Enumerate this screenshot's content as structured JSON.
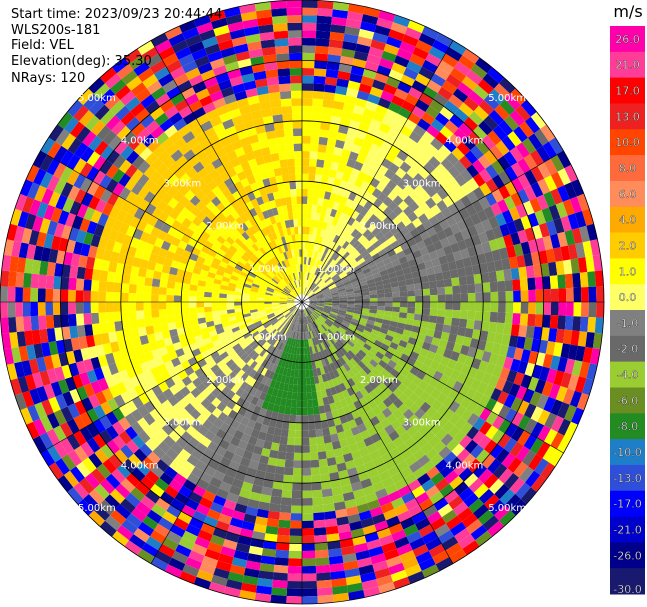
{
  "info": {
    "start_time": "Start time: 2023/09/23 20:44:44",
    "instrument": "WLS200s-181",
    "field": "Field: VEL",
    "elevation": "Elevation(deg): 35.30",
    "nrays": "NRays: 120"
  },
  "chart_data": {
    "type": "heatmap",
    "projection": "polar-ppi",
    "title": "",
    "field": "VEL",
    "units": "m/s",
    "n_rays": 120,
    "range_rings_km": [
      1.0,
      2.0,
      3.0,
      4.0,
      5.0
    ],
    "ring_labels": [
      "1.00km",
      "2.00km",
      "3.00km",
      "4.00km",
      "5.00km"
    ],
    "max_range_km": 5.0,
    "spokes_deg": [
      0,
      30,
      60,
      90,
      120,
      150,
      180,
      210,
      240,
      270,
      300,
      330
    ],
    "colorbar": {
      "label": "m/s",
      "ticks": [
        "26.0",
        "21.0",
        "17.0",
        "13.0",
        "10.0",
        "8.0",
        "6.0",
        "4.0",
        "2.0",
        "1.0",
        "0.0",
        "-1.0",
        "-2.0",
        "-4.0",
        "-6.0",
        "-8.0",
        "-10.0",
        "-13.0",
        "-17.0",
        "-21.0",
        "-26.0",
        "-30.0"
      ],
      "bins": [
        {
          "min": 26,
          "max": 30,
          "color": "#ff00aa"
        },
        {
          "min": 21,
          "max": 26,
          "color": "#ff3d99"
        },
        {
          "min": 17,
          "max": 21,
          "color": "#ff0000"
        },
        {
          "min": 13,
          "max": 17,
          "color": "#ee2020"
        },
        {
          "min": 10,
          "max": 13,
          "color": "#ff4500"
        },
        {
          "min": 8,
          "max": 10,
          "color": "#ff6a3c"
        },
        {
          "min": 6,
          "max": 8,
          "color": "#ff8c5a"
        },
        {
          "min": 4,
          "max": 6,
          "color": "#ffaa00"
        },
        {
          "min": 2,
          "max": 4,
          "color": "#ffcc00"
        },
        {
          "min": 1,
          "max": 2,
          "color": "#ffff00"
        },
        {
          "min": 0,
          "max": 1,
          "color": "#ffff66"
        },
        {
          "min": -1,
          "max": 0,
          "color": "#808080"
        },
        {
          "min": -2,
          "max": -1,
          "color": "#696969"
        },
        {
          "min": -4,
          "max": -2,
          "color": "#9acd32"
        },
        {
          "min": -6,
          "max": -4,
          "color": "#6b8e23"
        },
        {
          "min": -8,
          "max": -6,
          "color": "#228b22"
        },
        {
          "min": -10,
          "max": -8,
          "color": "#1e7fc8"
        },
        {
          "min": -13,
          "max": -10,
          "color": "#2f4fd8"
        },
        {
          "min": -17,
          "max": -13,
          "color": "#0000ff"
        },
        {
          "min": -21,
          "max": -17,
          "color": "#0000cd"
        },
        {
          "min": -26,
          "max": -21,
          "color": "#00008b"
        },
        {
          "min": -30,
          "max": -26,
          "color": "#191970"
        }
      ]
    },
    "pattern_note": "inner ~3.5 km: NW half positive (yellow/orange), SE half negative (green); outer 3.5-5 km: noisy random velocities"
  }
}
